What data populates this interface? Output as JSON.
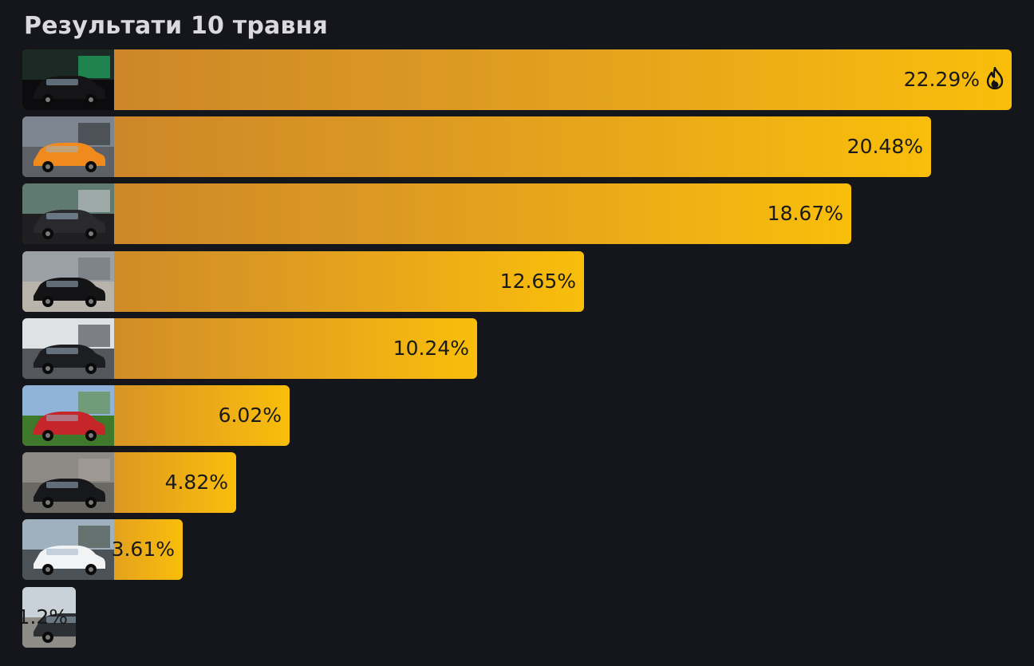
{
  "chart_data": {
    "type": "bar",
    "orientation": "horizontal",
    "title": "Результати 10 травня",
    "xlim": [
      0,
      22.29
    ],
    "categories": [
      "",
      "",
      "",
      "",
      "",
      "",
      "",
      "",
      ""
    ],
    "values": [
      22.29,
      20.48,
      18.67,
      12.65,
      10.24,
      6.02,
      4.82,
      3.61,
      1.2
    ],
    "value_labels": [
      "22.29%",
      "20.48%",
      "18.67%",
      "12.65%",
      "10.24%",
      "6.02%",
      "4.82%",
      "3.61%",
      "1.2%"
    ],
    "leader_icon": "fire-icon",
    "colors": {
      "background": "#15161c",
      "bar_start": "#c9812a",
      "bar_end": "#f8be0a",
      "title": "#d9d9de",
      "label": "#1a1a1a"
    }
  }
}
